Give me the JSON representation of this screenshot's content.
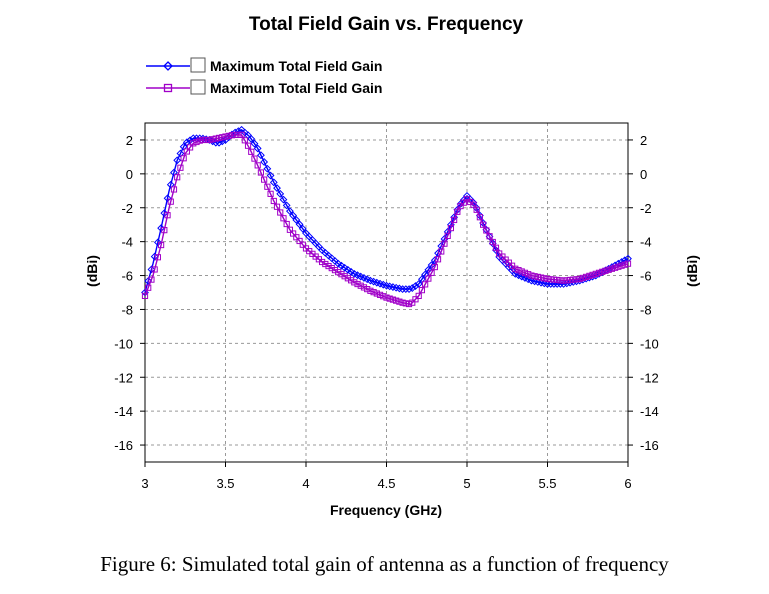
{
  "chart_data": {
    "type": "line",
    "title": "Total Field Gain vs. Frequency",
    "xlabel": "Frequency (GHz)",
    "ylabel": "(dBi)",
    "ylabel_right": "(dBi)",
    "xlim": [
      3,
      6
    ],
    "ylim": [
      -17,
      3
    ],
    "xticks": [
      "3",
      "3.5",
      "4",
      "4.5",
      "5",
      "5.5",
      "6"
    ],
    "xtick_values": [
      3,
      3.5,
      4,
      4.5,
      5,
      5.5,
      6
    ],
    "yticks": [
      "2",
      "0",
      "-2",
      "-4",
      "-6",
      "-8",
      "-10",
      "-12",
      "-14",
      "-16"
    ],
    "ytick_values": [
      2,
      0,
      -2,
      -4,
      -6,
      -8,
      -10,
      -12,
      -14,
      -16
    ],
    "grid": true,
    "legend_position": "top-left",
    "series": [
      {
        "name": "Maximum Total Field Gain",
        "color": "#0000ff",
        "marker": "diamond",
        "x": [
          3.0,
          3.05,
          3.1,
          3.15,
          3.2,
          3.25,
          3.3,
          3.35,
          3.4,
          3.45,
          3.5,
          3.55,
          3.6,
          3.65,
          3.7,
          3.8,
          3.9,
          4.0,
          4.1,
          4.2,
          4.3,
          4.4,
          4.5,
          4.6,
          4.65,
          4.7,
          4.8,
          4.9,
          4.95,
          5.0,
          5.05,
          5.1,
          5.2,
          5.3,
          5.4,
          5.5,
          5.6,
          5.7,
          5.8,
          5.9,
          6.0
        ],
        "values": [
          -7.0,
          -5.3,
          -3.2,
          -1.0,
          0.8,
          1.8,
          2.1,
          2.1,
          2.0,
          1.8,
          2.0,
          2.4,
          2.6,
          2.2,
          1.5,
          -0.5,
          -2.2,
          -3.5,
          -4.5,
          -5.3,
          -5.9,
          -6.3,
          -6.6,
          -6.8,
          -6.8,
          -6.5,
          -5.1,
          -3.0,
          -1.9,
          -1.3,
          -1.8,
          -2.9,
          -4.9,
          -5.9,
          -6.3,
          -6.5,
          -6.5,
          -6.3,
          -6.0,
          -5.5,
          -5.0
        ]
      },
      {
        "name": "Maximum Total Field Gain",
        "color": "#a000c8",
        "marker": "square",
        "x": [
          3.0,
          3.05,
          3.1,
          3.15,
          3.2,
          3.25,
          3.3,
          3.35,
          3.4,
          3.45,
          3.5,
          3.55,
          3.6,
          3.65,
          3.7,
          3.8,
          3.9,
          4.0,
          4.1,
          4.2,
          4.3,
          4.4,
          4.5,
          4.6,
          4.65,
          4.7,
          4.8,
          4.9,
          4.95,
          5.0,
          5.05,
          5.1,
          5.2,
          5.3,
          5.4,
          5.5,
          5.6,
          5.7,
          5.8,
          5.9,
          6.0
        ],
        "values": [
          -7.2,
          -6.0,
          -4.2,
          -2.0,
          -0.2,
          1.2,
          1.8,
          2.0,
          2.0,
          2.1,
          2.2,
          2.3,
          2.3,
          1.5,
          0.5,
          -1.6,
          -3.3,
          -4.4,
          -5.2,
          -5.8,
          -6.4,
          -6.9,
          -7.3,
          -7.6,
          -7.7,
          -7.2,
          -5.5,
          -3.2,
          -2.0,
          -1.5,
          -1.9,
          -3.0,
          -4.7,
          -5.6,
          -6.0,
          -6.2,
          -6.3,
          -6.2,
          -5.9,
          -5.6,
          -5.3
        ]
      }
    ]
  },
  "caption": "Figure 6: Simulated total gain of antenna as a function of frequency"
}
